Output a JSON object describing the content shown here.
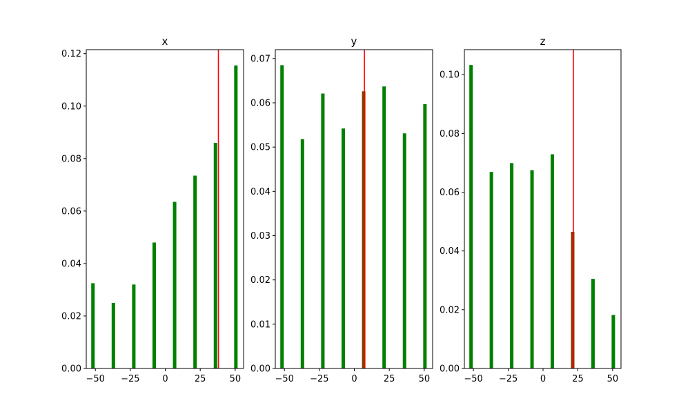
{
  "chart_data": [
    {
      "type": "bar",
      "title": "x",
      "x": [
        -51.7,
        -37.1,
        -22.5,
        -7.9,
        6.7,
        21.3,
        35.9,
        50.5
      ],
      "values": [
        0.0325,
        0.025,
        0.032,
        0.048,
        0.0635,
        0.0735,
        0.086,
        0.1155
      ],
      "xlim": [
        -56.5,
        56.0
      ],
      "ylim": [
        0,
        0.1215
      ],
      "xticks": [
        -50,
        -25,
        0,
        25,
        50
      ],
      "xtick_labels": [
        "−50",
        "−25",
        "0",
        "25",
        "50"
      ],
      "yticks": [
        0,
        0.02,
        0.04,
        0.06,
        0.08,
        0.1,
        0.12
      ],
      "ytick_labels": [
        "0.00",
        "0.02",
        "0.04",
        "0.06",
        "0.08",
        "0.10",
        "0.12"
      ],
      "marker_x": 38.0,
      "bar_color": "#008000",
      "marker_color": "#ff0000",
      "overlap_color": "#7f4000",
      "grid": false
    },
    {
      "type": "bar",
      "title": "y",
      "x": [
        -51.7,
        -37.1,
        -22.5,
        -7.9,
        6.7,
        21.3,
        35.9,
        50.5
      ],
      "values": [
        0.0685,
        0.0518,
        0.0621,
        0.0542,
        0.0626,
        0.0637,
        0.0531,
        0.0597
      ],
      "xlim": [
        -56.5,
        56.0
      ],
      "ylim": [
        0,
        0.072
      ],
      "xticks": [
        -50,
        -25,
        0,
        25,
        50
      ],
      "xtick_labels": [
        "−50",
        "−25",
        "0",
        "25",
        "50"
      ],
      "yticks": [
        0,
        0.01,
        0.02,
        0.03,
        0.04,
        0.05,
        0.06,
        0.07
      ],
      "ytick_labels": [
        "0.00",
        "0.01",
        "0.02",
        "0.03",
        "0.04",
        "0.05",
        "0.06",
        "0.07"
      ],
      "marker_x": 7.2,
      "bar_color": "#008000",
      "marker_color": "#ff0000",
      "overlap_color": "#7f4000",
      "grid": false
    },
    {
      "type": "bar",
      "title": "z",
      "x": [
        -51.7,
        -37.1,
        -22.5,
        -7.9,
        6.7,
        21.3,
        35.9,
        50.5
      ],
      "values": [
        0.1033,
        0.0669,
        0.0699,
        0.0675,
        0.0729,
        0.0465,
        0.0305,
        0.0182
      ],
      "xlim": [
        -56.5,
        56.0
      ],
      "ylim": [
        0,
        0.1085
      ],
      "xticks": [
        -50,
        -25,
        0,
        25,
        50
      ],
      "xtick_labels": [
        "−50",
        "−25",
        "0",
        "25",
        "50"
      ],
      "yticks": [
        0,
        0.02,
        0.04,
        0.06,
        0.08,
        0.1
      ],
      "ytick_labels": [
        "0.00",
        "0.02",
        "0.04",
        "0.06",
        "0.08",
        "0.10"
      ],
      "marker_x": 21.8,
      "bar_color": "#008000",
      "marker_color": "#ff0000",
      "overlap_color": "#7f4000",
      "grid": false
    }
  ]
}
